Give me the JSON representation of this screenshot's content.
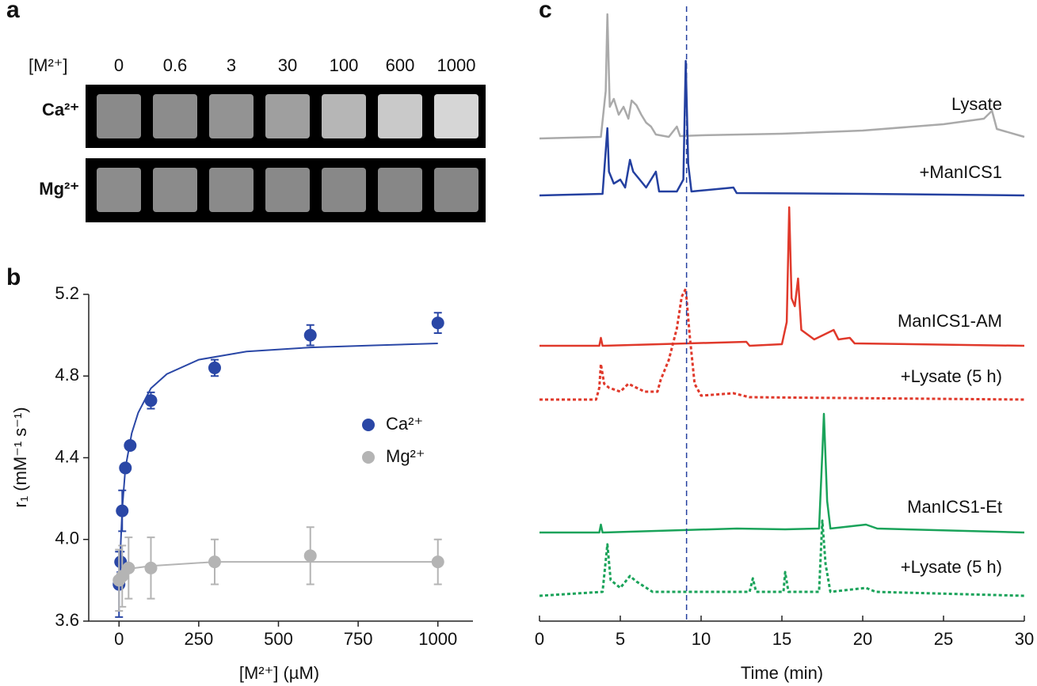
{
  "panel_a": {
    "label": "a",
    "header": "[M²⁺]",
    "concentrations": [
      "0",
      "0.6",
      "3",
      "30",
      "100",
      "600",
      "1000"
    ],
    "rows": [
      "Ca²⁺",
      "Mg²⁺"
    ]
  },
  "chart_data": [
    {
      "type": "scatter",
      "panel": "b",
      "xlabel": "[M²⁺] (µM)",
      "ylabel": "r₁ (mM⁻¹ s⁻¹)",
      "xlim": [
        -95,
        1110
      ],
      "ylim": [
        3.6,
        5.2
      ],
      "xticks": [
        0,
        250,
        500,
        750,
        1000
      ],
      "yticks": [
        3.6,
        {
          "value": 4,
          "label": "4.0"
        },
        4.4,
        4.8,
        5.2
      ],
      "legend": "right",
      "series": [
        {
          "name": "Ca²⁺",
          "color": "#2a47a6",
          "x": [
            0,
            5,
            10,
            20,
            35,
            100,
            300,
            600,
            1000
          ],
          "values": [
            3.78,
            3.89,
            4.14,
            4.35,
            4.46,
            4.68,
            4.84,
            5.0,
            5.06
          ],
          "errors": [
            0.16,
            0.05,
            0.1,
            0.02,
            0.02,
            0.04,
            0.04,
            0.05,
            0.05
          ],
          "fit_x": [
            0,
            10,
            20,
            40,
            60,
            100,
            150,
            250,
            400,
            600,
            800,
            1000
          ],
          "fit_values": [
            3.78,
            4.15,
            4.35,
            4.52,
            4.62,
            4.74,
            4.81,
            4.88,
            4.92,
            4.94,
            4.95,
            4.96
          ]
        },
        {
          "name": "Mg²⁺",
          "color": "#b4b4b4",
          "x": [
            0,
            10,
            30,
            100,
            300,
            600,
            1000
          ],
          "values": [
            3.8,
            3.82,
            3.86,
            3.86,
            3.89,
            3.92,
            3.89
          ],
          "errors": [
            0.15,
            0.15,
            0.15,
            0.15,
            0.11,
            0.14,
            0.11
          ],
          "fit_x": [
            0,
            20,
            50,
            100,
            300,
            600,
            1000
          ],
          "fit_values": [
            3.8,
            3.84,
            3.86,
            3.87,
            3.89,
            3.89,
            3.89
          ]
        }
      ]
    },
    {
      "type": "line",
      "panel": "c",
      "xlabel": "Time (min)",
      "xlim": [
        0,
        30
      ],
      "xticks": [
        0,
        5,
        10,
        15,
        20,
        25,
        30
      ],
      "vline": 9.1,
      "series": [
        {
          "name": "Lysate",
          "color": "#aaaaaa",
          "dash": false,
          "x": [
            0,
            3.8,
            4.1,
            4.2,
            4.35,
            4.6,
            4.9,
            5.2,
            5.5,
            5.7,
            6.0,
            6.3,
            6.6,
            6.9,
            7.2,
            8.0,
            8.5,
            8.7,
            10,
            15,
            20,
            25,
            27.5,
            28,
            28.3,
            30
          ],
          "values": [
            0,
            2,
            60,
            157,
            40,
            50,
            30,
            40,
            25,
            48,
            42,
            30,
            20,
            15,
            5,
            2,
            15,
            3,
            4,
            6,
            10,
            18,
            25,
            35,
            12,
            2
          ]
        },
        {
          "name": "+ManICS1",
          "color": "#2440a0",
          "dash": false,
          "x": [
            0,
            3.9,
            4.2,
            4.3,
            4.6,
            5.0,
            5.3,
            5.6,
            5.8,
            6.2,
            6.6,
            7.2,
            7.4,
            8.5,
            8.9,
            9.05,
            9.2,
            9.4,
            12,
            12.2,
            20,
            30
          ],
          "values": [
            0,
            2,
            85,
            30,
            15,
            20,
            10,
            45,
            30,
            20,
            10,
            30,
            5,
            5,
            20,
            170,
            40,
            5,
            10,
            3,
            2,
            0
          ]
        },
        {
          "name": "ManICS1-AM",
          "color": "#e0392b",
          "dash": false,
          "x": [
            0,
            3.7,
            3.8,
            3.9,
            12.8,
            13,
            15,
            15.3,
            15.45,
            15.6,
            15.8,
            16.0,
            16.2,
            17,
            18.2,
            18.5,
            19.2,
            19.5,
            30
          ],
          "values": [
            0,
            0,
            10,
            0,
            5,
            0,
            2,
            30,
            175,
            60,
            50,
            85,
            20,
            8,
            20,
            8,
            10,
            3,
            0
          ]
        },
        {
          "name": "+Lysate (5 h)",
          "color": "#e0392b",
          "dash": true,
          "x": [
            0,
            3.5,
            3.7,
            3.8,
            4.0,
            4.3,
            5,
            5.5,
            6,
            6.5,
            7.3,
            7.5,
            8,
            8.5,
            8.8,
            9.05,
            9.3,
            9.6,
            10,
            12,
            13,
            30
          ],
          "values": [
            0,
            0,
            15,
            45,
            20,
            15,
            10,
            20,
            15,
            10,
            10,
            25,
            50,
            90,
            130,
            140,
            80,
            20,
            5,
            8,
            3,
            0
          ]
        },
        {
          "name": "ManICS1-Et",
          "color": "#1aa35a",
          "dash": false,
          "x": [
            0,
            3.7,
            3.8,
            3.9,
            12.2,
            15.2,
            17.3,
            17.5,
            17.6,
            17.8,
            18,
            20.2,
            20.9,
            30
          ],
          "values": [
            0,
            0,
            10,
            0,
            5,
            4,
            5,
            100,
            150,
            40,
            5,
            10,
            5,
            0
          ]
        },
        {
          "name": "+Lysate (5 h)",
          "color": "#1aa35a",
          "dash": true,
          "x": [
            0,
            3.9,
            4.2,
            4.4,
            5,
            5.6,
            6,
            7,
            13,
            13.2,
            13.4,
            15.1,
            15.2,
            15.4,
            17.3,
            17.5,
            17.7,
            18,
            20.2,
            20.8,
            30
          ],
          "values": [
            0,
            5,
            65,
            20,
            10,
            25,
            18,
            5,
            5,
            22,
            5,
            5,
            30,
            5,
            5,
            95,
            40,
            5,
            10,
            5,
            0
          ]
        }
      ]
    }
  ]
}
